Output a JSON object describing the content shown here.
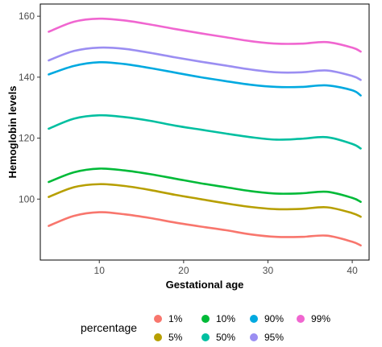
{
  "chart_data": {
    "type": "line",
    "xlabel": "Gestational age",
    "ylabel": "Hemoglobin levels",
    "xlim": [
      3,
      42
    ],
    "ylim": [
      80,
      164
    ],
    "x_ticks": [
      10,
      20,
      30,
      40
    ],
    "y_ticks": [
      100,
      120,
      140,
      160
    ],
    "grid": false,
    "legend": {
      "title": "percentage",
      "position": "bottom"
    },
    "x": [
      4,
      7,
      10,
      13,
      16,
      19,
      22,
      25,
      28,
      31,
      34,
      37,
      40,
      41
    ],
    "series": [
      {
        "name": "1%",
        "color": "#F8766D",
        "values": [
          91.2,
          94.5,
          95.7,
          95.0,
          93.8,
          92.3,
          91.0,
          89.8,
          88.4,
          87.6,
          87.6,
          88.0,
          86.0,
          84.8
        ]
      },
      {
        "name": "5%",
        "color": "#B79F00",
        "values": [
          100.7,
          103.9,
          104.9,
          104.3,
          103.0,
          101.4,
          100.0,
          98.6,
          97.4,
          96.7,
          96.8,
          97.3,
          95.4,
          94.2
        ]
      },
      {
        "name": "10%",
        "color": "#00BA38",
        "values": [
          105.6,
          108.8,
          110.0,
          109.4,
          108.2,
          106.7,
          105.2,
          103.9,
          102.6,
          101.8,
          101.9,
          102.4,
          100.4,
          99.1
        ]
      },
      {
        "name": "50%",
        "color": "#00BFA0",
        "values": [
          123.1,
          126.4,
          127.5,
          126.9,
          125.7,
          124.1,
          122.8,
          121.5,
          120.3,
          119.5,
          119.8,
          120.3,
          118.1,
          116.6
        ]
      },
      {
        "name": "90%",
        "color": "#00A9E0",
        "values": [
          140.9,
          143.7,
          144.9,
          144.3,
          143.0,
          141.5,
          140.0,
          138.7,
          137.5,
          136.8,
          136.8,
          137.3,
          135.7,
          134.0
        ]
      },
      {
        "name": "95%",
        "color": "#9B8EF2",
        "values": [
          145.5,
          148.6,
          149.7,
          149.3,
          148.0,
          146.5,
          145.1,
          143.8,
          142.5,
          141.6,
          141.6,
          142.2,
          140.4,
          139.1
        ]
      },
      {
        "name": "99%",
        "color": "#F066D0",
        "values": [
          154.9,
          158.2,
          159.2,
          158.6,
          157.3,
          155.8,
          154.4,
          153.1,
          151.8,
          151.0,
          151.0,
          151.5,
          149.7,
          148.4
        ]
      }
    ],
    "legend_layout": {
      "rows": [
        [
          "1%",
          "10%",
          "90%",
          "99%"
        ],
        [
          "5%",
          "50%",
          "95%"
        ]
      ]
    }
  }
}
